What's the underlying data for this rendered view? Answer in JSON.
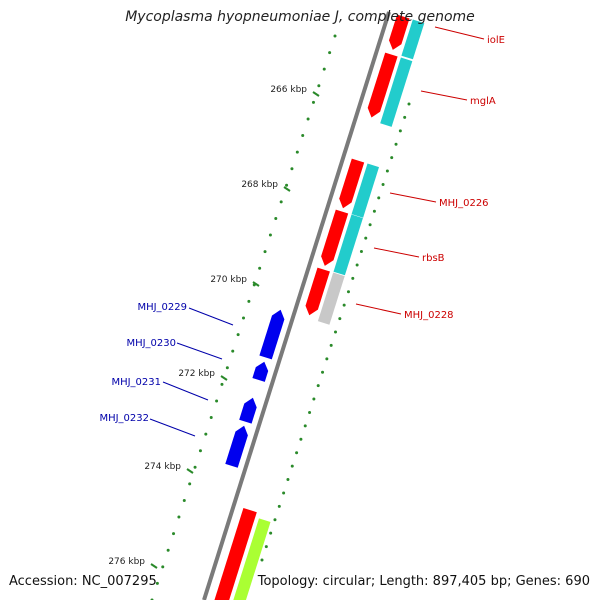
{
  "title": "Mycoplasma hyopneumoniae J, complete genome",
  "footer": {
    "accession": "Accession: NC_007295",
    "summary": "Topology: circular; Length: 897,405 bp; Genes: 690"
  },
  "colors": {
    "backbone": "#7a7a7a",
    "gc_tick": "#2a8a2a",
    "gene_forward": "#ff0000",
    "gene_reverse": "#0000ee",
    "cog_cyan": "#22cccc",
    "cog_grey": "#c8c8c8",
    "cog_lime": "#aaff33",
    "label_forward": "#cc0000",
    "label_reverse": "#0000aa"
  },
  "ruler": [
    {
      "label": "266 kbp"
    },
    {
      "label": "268 kbp"
    },
    {
      "label": "270 kbp"
    },
    {
      "label": "272 kbp"
    },
    {
      "label": "274 kbp"
    },
    {
      "label": "276 kbp"
    }
  ],
  "genes_forward": [
    {
      "label": "iolE"
    },
    {
      "label": "mglA"
    },
    {
      "label": "MHJ_0226"
    },
    {
      "label": "rbsB"
    },
    {
      "label": "MHJ_0228"
    }
  ],
  "genes_reverse": [
    {
      "label": "MHJ_0229"
    },
    {
      "label": "MHJ_0230"
    },
    {
      "label": "MHJ_0231"
    },
    {
      "label": "MHJ_0232"
    }
  ]
}
